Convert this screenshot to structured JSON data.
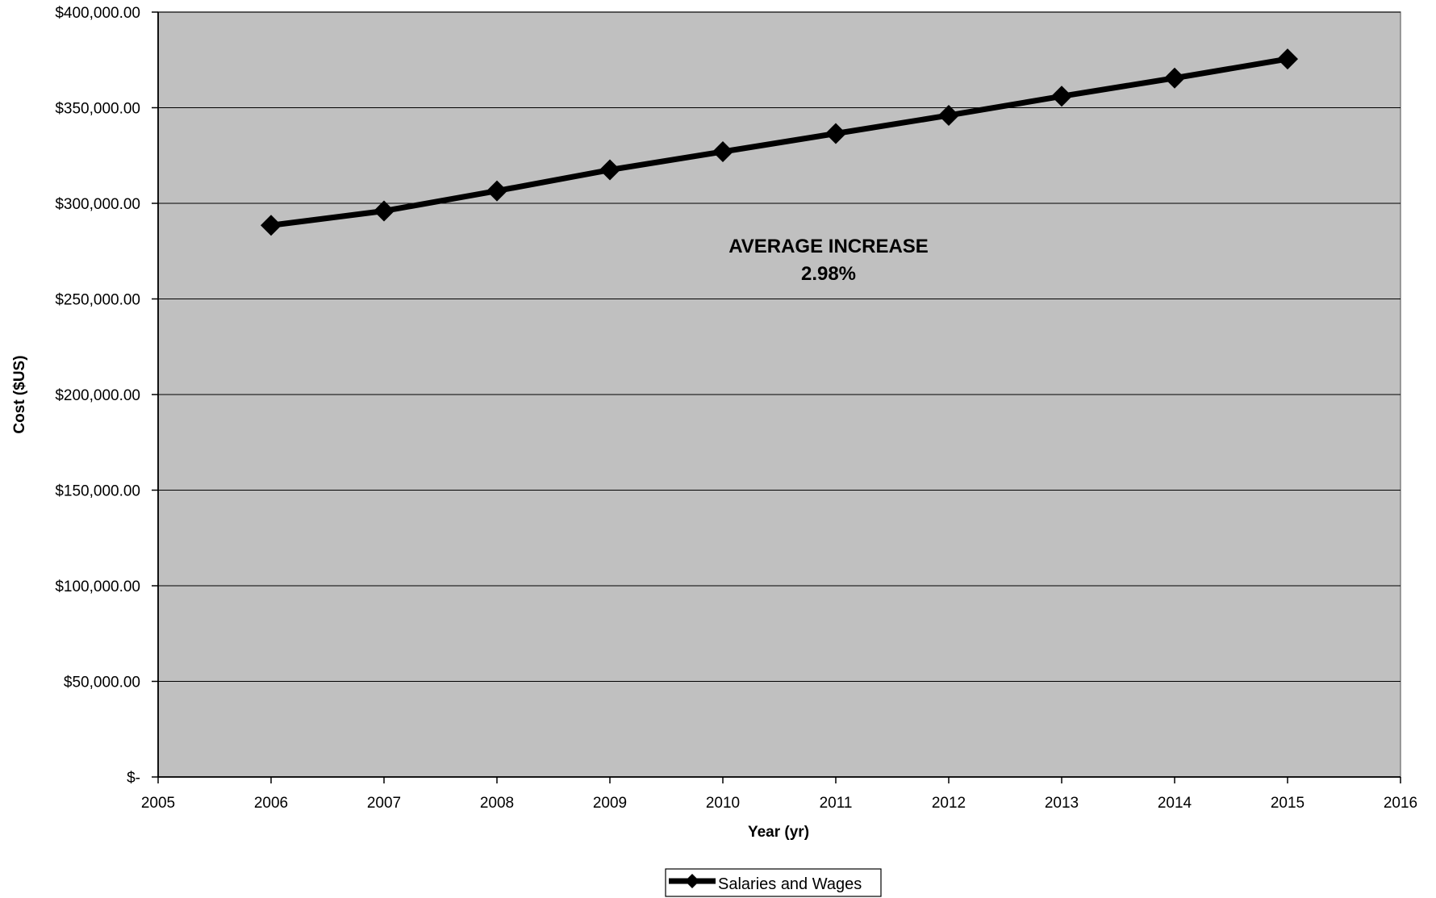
{
  "chart_data": {
    "type": "line",
    "x": [
      2006,
      2007,
      2008,
      2009,
      2010,
      2011,
      2012,
      2013,
      2014,
      2015
    ],
    "series": [
      {
        "name": "Salaries and Wages",
        "values": [
          288500,
          296000,
          306500,
          317500,
          327000,
          336500,
          346000,
          356000,
          365500,
          375500
        ],
        "color": "#000000",
        "marker": "diamond"
      }
    ],
    "xlabel": "Year (yr)",
    "ylabel": "Cost ($US)",
    "xlim": [
      2005,
      2016
    ],
    "ylim": [
      0,
      400000
    ],
    "x_ticks": [
      "2005",
      "2006",
      "2007",
      "2008",
      "2009",
      "2010",
      "2011",
      "2012",
      "2013",
      "2014",
      "2015",
      "2016"
    ],
    "y_ticks": [
      "$-",
      "$50,000.00",
      "$100,000.00",
      "$150,000.00",
      "$200,000.00",
      "$250,000.00",
      "$300,000.00",
      "$350,000.00",
      "$400,000.00"
    ],
    "annotation": {
      "line1": "AVERAGE INCREASE",
      "line2": "2.98%"
    },
    "legend": {
      "position": "bottom",
      "entries": [
        "Salaries and Wages"
      ]
    },
    "grid": "horizontal",
    "plot_background": "#c0c0c0"
  }
}
